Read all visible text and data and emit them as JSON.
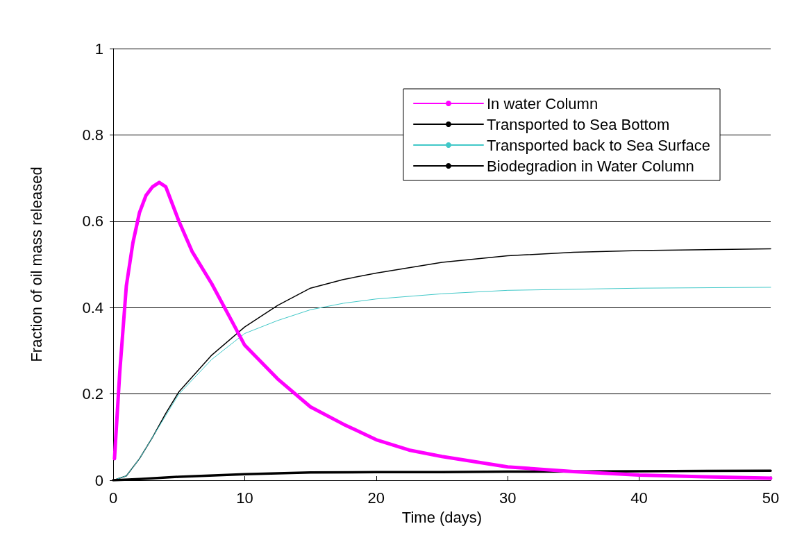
{
  "chart_data": {
    "type": "line",
    "xlabel": "Time (days)",
    "ylabel": "Fraction of oil mass released",
    "xlim": [
      0,
      50
    ],
    "xticks": [
      0,
      10,
      20,
      30,
      40,
      50
    ],
    "ylim": [
      0,
      1
    ],
    "yticks": [
      0,
      0.2,
      0.4,
      0.6,
      0.8,
      1
    ],
    "grid": "y",
    "legend": "top right",
    "marker": "none",
    "line_style": "solid",
    "series": [
      {
        "name": "In water Column",
        "color": "#ff00ff",
        "x": [
          0.1,
          0.5,
          1,
          1.5,
          2,
          2.5,
          3,
          3.5,
          4,
          5,
          6,
          7.5,
          9,
          10,
          12.5,
          15,
          17.5,
          20,
          22.5,
          25,
          30,
          35,
          40,
          45,
          50
        ],
        "values": [
          0.05,
          0.25,
          0.45,
          0.55,
          0.62,
          0.66,
          0.68,
          0.69,
          0.68,
          0.6,
          0.53,
          0.455,
          0.37,
          0.313,
          0.235,
          0.17,
          0.13,
          0.094,
          0.07,
          0.055,
          0.031,
          0.02,
          0.012,
          0.008,
          0.005
        ]
      },
      {
        "name": "Transported to Sea Bottom",
        "color": "#000000",
        "x": [
          0,
          2,
          5,
          10,
          15,
          20,
          25,
          30,
          40,
          50
        ],
        "values": [
          0,
          0.003,
          0.008,
          0.014,
          0.018,
          0.019,
          0.019,
          0.02,
          0.021,
          0.022
        ]
      },
      {
        "name": "Transported back to Sea Surface",
        "color": "#40c8c8",
        "x": [
          0,
          1,
          2,
          3,
          4,
          5,
          7.5,
          10,
          12.5,
          15,
          17.5,
          20,
          25,
          30,
          40,
          50
        ],
        "values": [
          0,
          0.01,
          0.05,
          0.1,
          0.15,
          0.2,
          0.28,
          0.34,
          0.37,
          0.395,
          0.41,
          0.42,
          0.432,
          0.44,
          0.445,
          0.447
        ]
      },
      {
        "name": "Biodegradion in Water Column",
        "color": "#000000",
        "x": [
          0,
          1,
          2,
          3,
          4,
          5,
          7.5,
          10,
          12.5,
          15,
          17.5,
          20,
          25,
          30,
          35,
          40,
          50
        ],
        "values": [
          0,
          0.01,
          0.05,
          0.1,
          0.155,
          0.205,
          0.29,
          0.355,
          0.405,
          0.445,
          0.465,
          0.48,
          0.505,
          0.52,
          0.528,
          0.532,
          0.536
        ]
      }
    ]
  }
}
